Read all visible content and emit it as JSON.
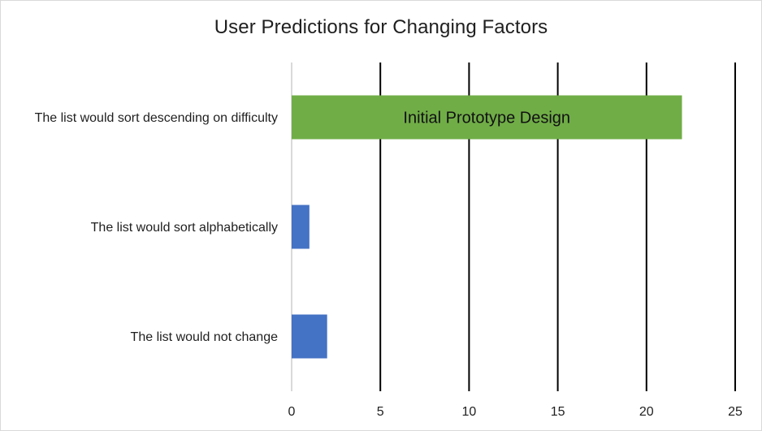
{
  "chart_data": {
    "type": "bar",
    "orientation": "horizontal",
    "title": "User Predictions for Changing Factors",
    "categories": [
      "The list would sort descending on difficulty",
      "The list would sort alphabetically",
      "The list would not change"
    ],
    "values": [
      22,
      1,
      2
    ],
    "bar_colors": [
      "#70ad47",
      "#4472c4",
      "#4472c4"
    ],
    "annotations": [
      {
        "category": "The list would sort descending on difficulty",
        "text": "Initial Prototype Design"
      }
    ],
    "xlim": [
      0,
      25
    ],
    "xticks": [
      0,
      5,
      10,
      15,
      20,
      25
    ],
    "xlabel": "",
    "ylabel": "",
    "grid": "vertical",
    "grid_color": "#000000",
    "axis_color": "#d9d9d9",
    "legend": "none"
  }
}
